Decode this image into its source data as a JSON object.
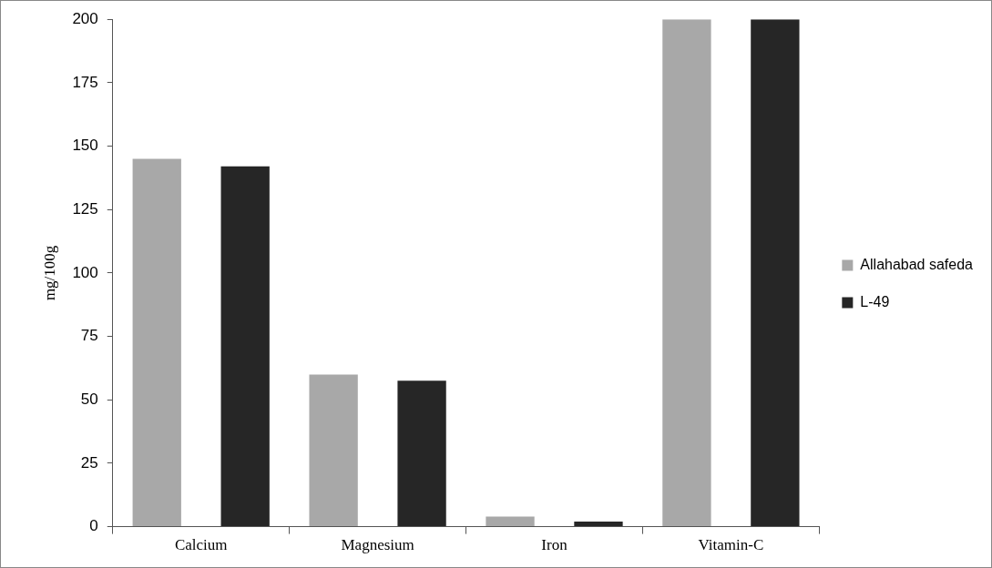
{
  "chart_data": {
    "type": "bar",
    "ylabel": "mg/100g",
    "categories": [
      "Calcium",
      "Magnesium",
      "Iron",
      "Vitamin-C"
    ],
    "series": [
      {
        "name": "Allahabad safeda",
        "color": "#a8a8a8",
        "values": [
          145,
          60,
          4,
          200
        ]
      },
      {
        "name": "L-49",
        "color": "#262626",
        "values": [
          142,
          57.5,
          2,
          200
        ]
      }
    ],
    "ylim": [
      0,
      200
    ],
    "yticks": [
      0,
      25,
      50,
      75,
      100,
      125,
      150,
      175,
      200
    ],
    "grid": false,
    "legend": "right"
  }
}
